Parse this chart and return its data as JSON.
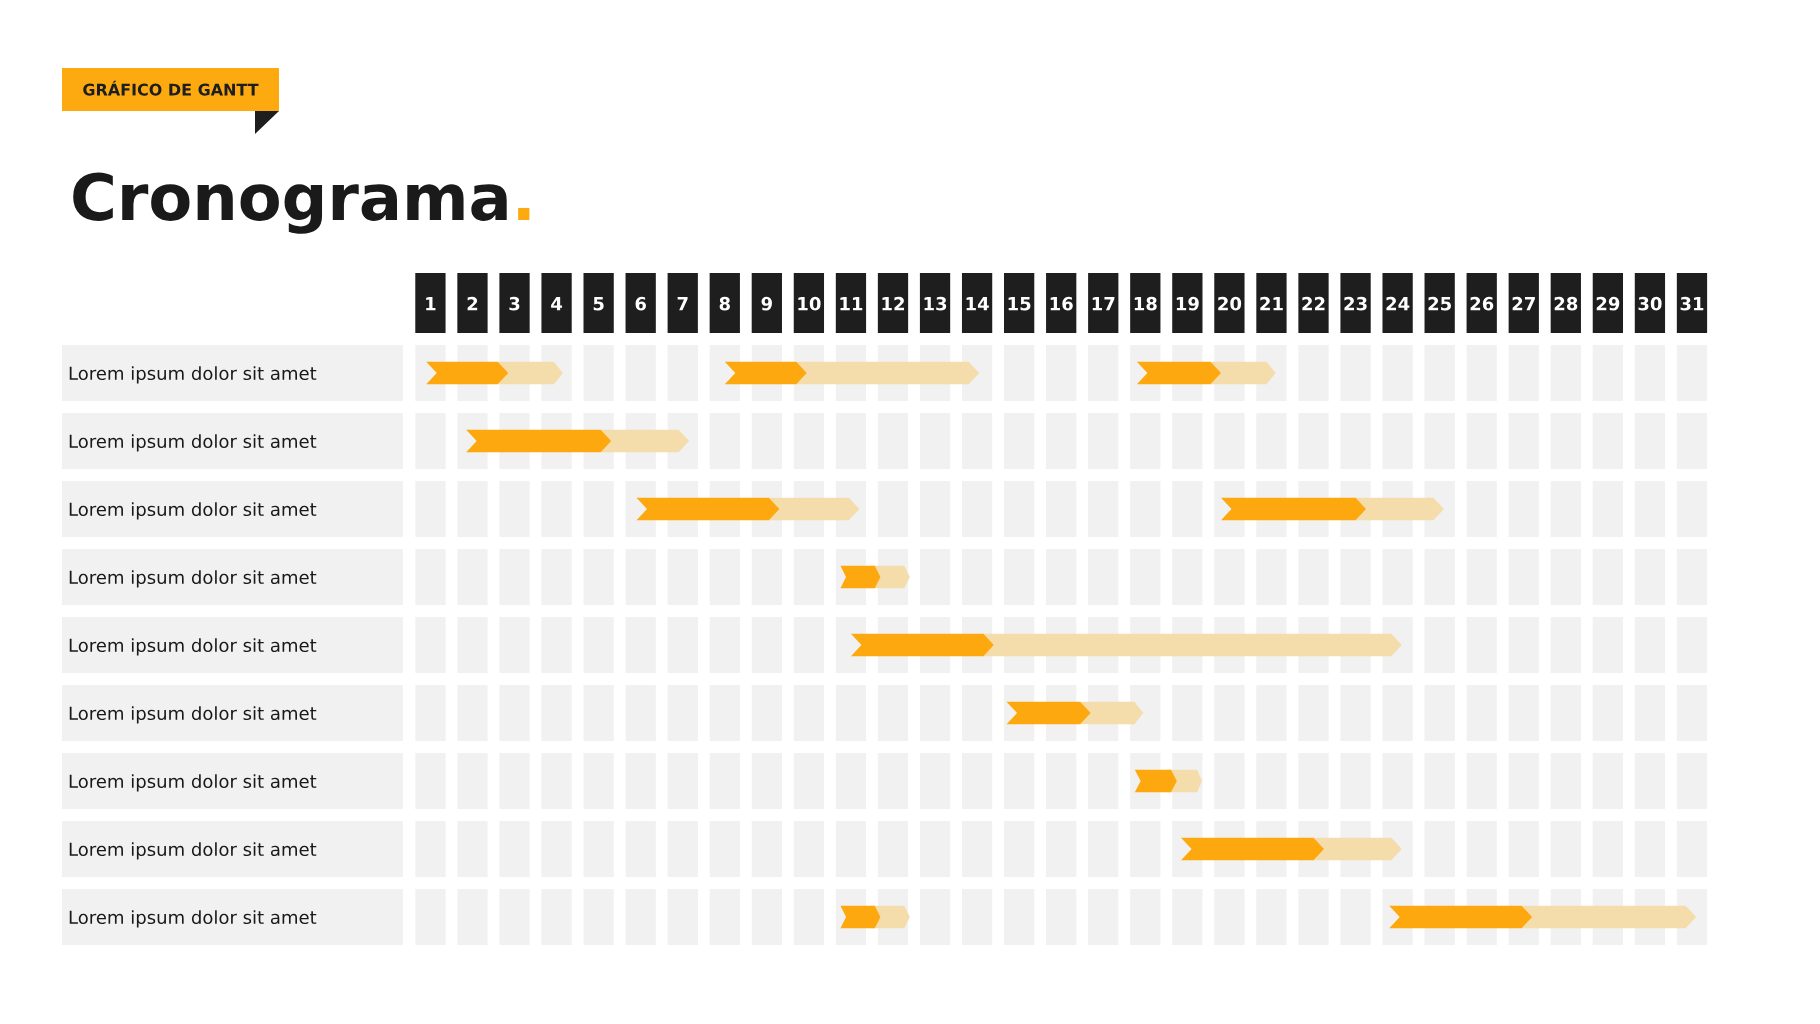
{
  "chart_data": {
    "type": "bar",
    "orientation": "horizontal",
    "title": "Cronograma.",
    "subtitle": "GRÁFICO DE GANTT",
    "categories": [
      "Lorem ipsum dolor sit amet",
      "Lorem ipsum dolor sit amet",
      "Lorem ipsum dolor sit amet",
      "Lorem ipsum dolor sit amet",
      "Lorem ipsum dolor sit amet",
      "Lorem ipsum dolor sit amet",
      "Lorem ipsum dolor sit amet",
      "Lorem ipsum dolor sit amet",
      "Lorem ipsum dolor sit amet"
    ],
    "xlim": [
      0.5,
      31.5
    ],
    "xticks": [
      1,
      2,
      3,
      4,
      5,
      6,
      7,
      8,
      9,
      10,
      11,
      12,
      13,
      14,
      15,
      16,
      17,
      18,
      19,
      20,
      21,
      22,
      23,
      24,
      25,
      26,
      27,
      28,
      29,
      30,
      31
    ],
    "series": [
      {
        "color": "#f5dcab",
        "base": [
          2.6,
          5.05,
          9.05,
          11.45,
          14.15,
          16.45,
          18.5,
          22.0,
          11.45
        ],
        "values": [
          1.55,
          2.1,
          2.15,
          0.95,
          9.95,
          1.5,
          0.85,
          2.1,
          0.95
        ]
      },
      {
        "color": "#fda80f",
        "base": [
          0.9,
          1.85,
          5.9,
          10.75,
          11.0,
          14.7,
          17.75,
          18.85,
          10.75
        ],
        "values": [
          1.95,
          3.45,
          3.4,
          0.95,
          3.4,
          2.0,
          1.0,
          3.4,
          0.95
        ]
      },
      {
        "color": "#f5dcab",
        "base": [
          9.7,
          null,
          23.0,
          null,
          null,
          null,
          null,
          null,
          26.95
        ],
        "values": [
          4.35,
          null,
          2.1,
          null,
          null,
          null,
          null,
          null,
          4.15
        ]
      },
      {
        "color": "#fda80f",
        "base": [
          8.0,
          null,
          19.8,
          null,
          null,
          null,
          null,
          null,
          23.8
        ],
        "values": [
          1.95,
          null,
          3.45,
          null,
          null,
          null,
          null,
          null,
          3.4
        ]
      },
      {
        "color": "#f5dcab",
        "base": [
          19.55,
          null,
          null,
          null,
          null,
          null,
          null,
          null,
          null
        ],
        "values": [
          1.55,
          null,
          null,
          null,
          null,
          null,
          null,
          null,
          null
        ]
      },
      {
        "color": "#fda80f",
        "base": [
          17.8,
          null,
          null,
          null,
          null,
          null,
          null,
          null,
          null
        ],
        "values": [
          2.0,
          null,
          null,
          null,
          null,
          null,
          null,
          null,
          null
        ]
      }
    ]
  }
}
